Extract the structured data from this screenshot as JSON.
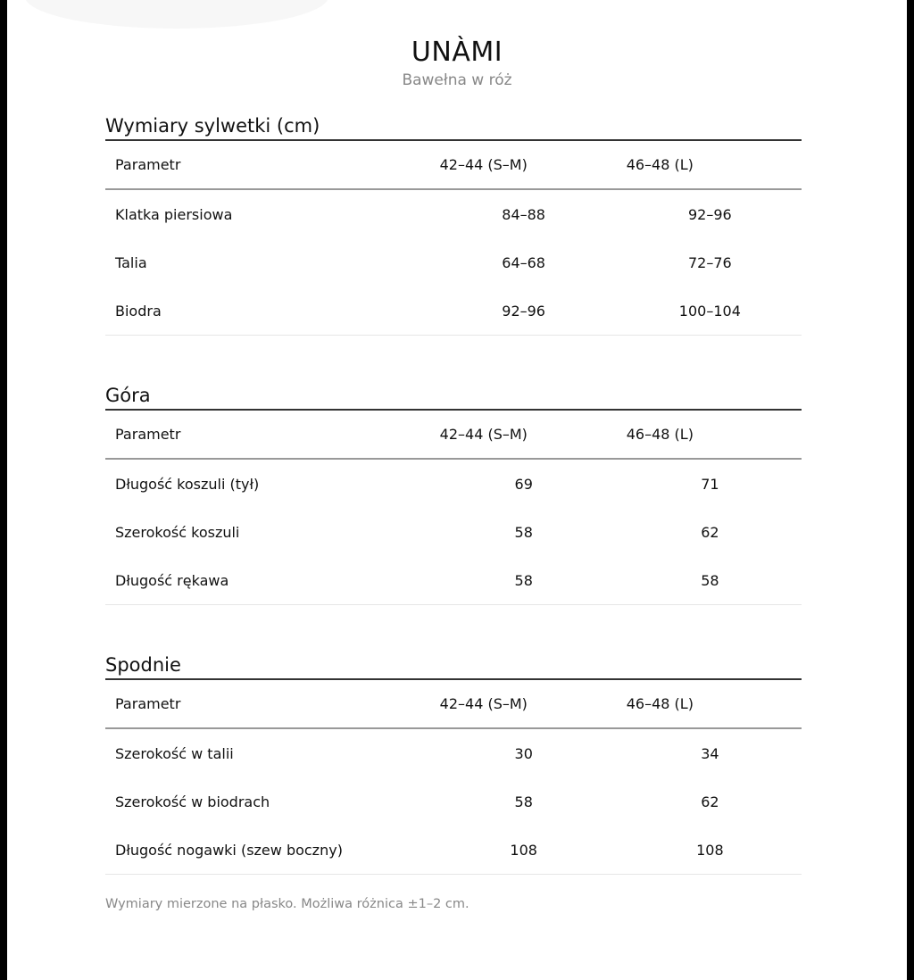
{
  "brand": {
    "title": "UNÀMI",
    "subtitle": "Bawełna w róż"
  },
  "sections": [
    {
      "title": "Wymiary sylwetki (cm)",
      "headers": [
        "Parametr",
        "42–44 (S–M)",
        "46–48 (L)"
      ],
      "rows": [
        [
          "Klatka piersiowa",
          "84–88",
          "92–96"
        ],
        [
          "Talia",
          "64–68",
          "72–76"
        ],
        [
          "Biodra",
          "92–96",
          "100–104"
        ]
      ]
    },
    {
      "title": "Góra",
      "headers": [
        "Parametr",
        "42–44 (S–M)",
        "46–48 (L)"
      ],
      "rows": [
        [
          "Długość koszuli (tył)",
          "69",
          "71"
        ],
        [
          "Szerokość koszuli",
          "58",
          "62"
        ],
        [
          "Długość rękawa",
          "58",
          "58"
        ]
      ]
    },
    {
      "title": "Spodnie",
      "headers": [
        "Parametr",
        "42–44 (S–M)",
        "46–48 (L)"
      ],
      "rows": [
        [
          "Szerokość w talii",
          "30",
          "34"
        ],
        [
          "Szerokość w biodrach",
          "58",
          "62"
        ],
        [
          "Długość nogawki (szew boczny)",
          "108",
          "108"
        ]
      ]
    }
  ],
  "note": "Wymiary mierzone na płasko. Możliwa różnica ±1–2 cm."
}
